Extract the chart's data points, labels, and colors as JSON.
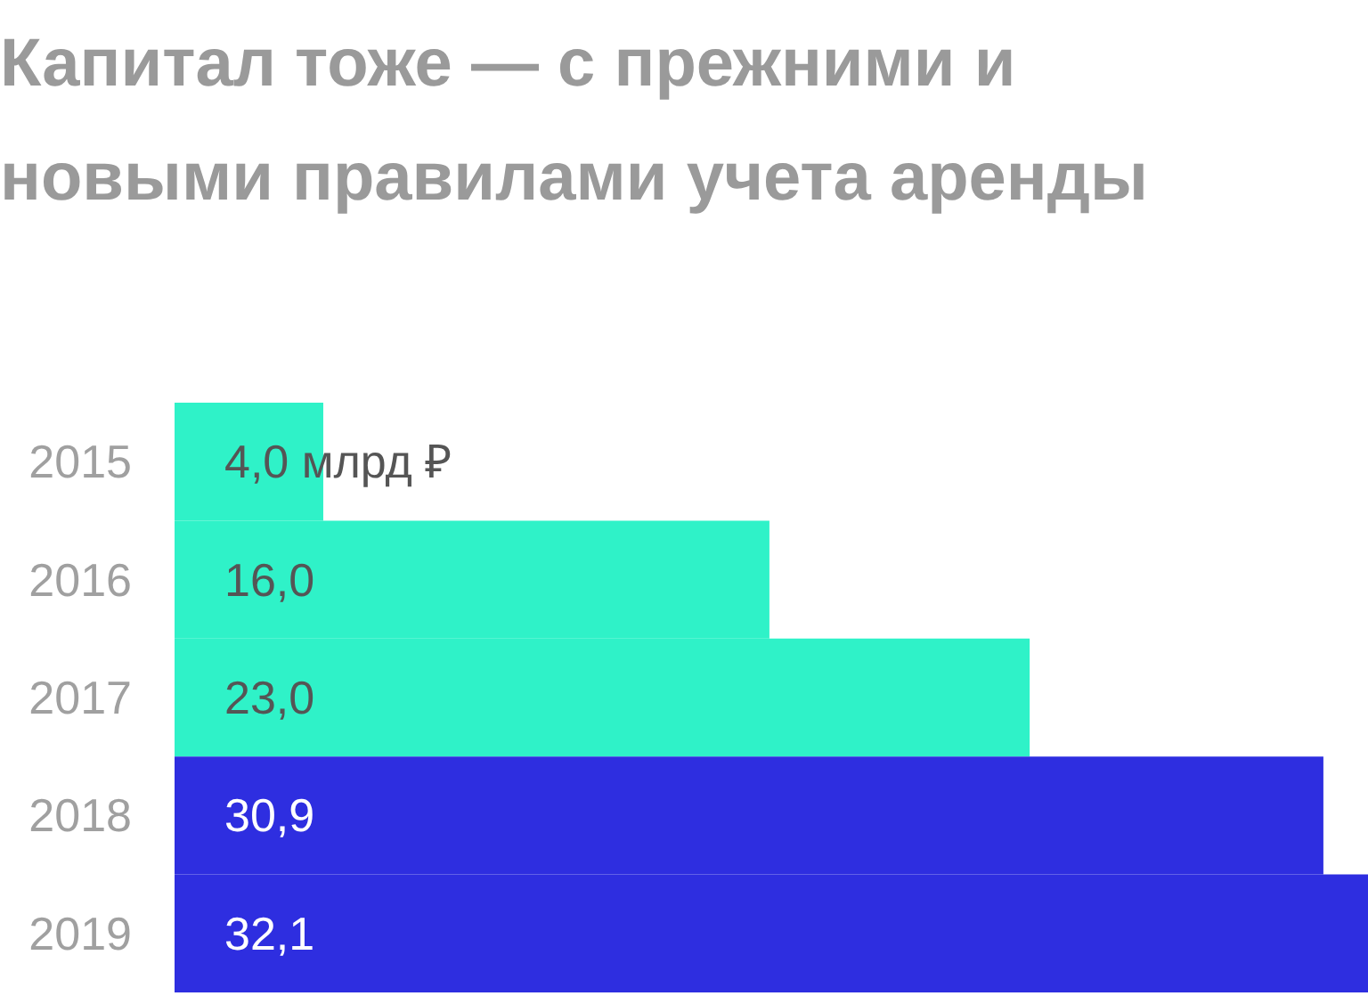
{
  "chart_data": {
    "type": "bar",
    "orientation": "horizontal",
    "title": "Капитал тоже — с прежними и новыми правилами учета аренды",
    "categories": [
      "2015",
      "2016",
      "2017",
      "2018",
      "2019"
    ],
    "values": [
      4.0,
      16.0,
      23.0,
      30.9,
      32.1
    ],
    "colors": [
      "#2ff2c8",
      "#2ff2c8",
      "#2ff2c8",
      "#2e2ee0",
      "#2e2ee0"
    ],
    "value_labels": [
      "4,0 млрд ₽",
      "16,0",
      "23,0",
      "30,9",
      "32,1"
    ],
    "grid": false
  }
}
